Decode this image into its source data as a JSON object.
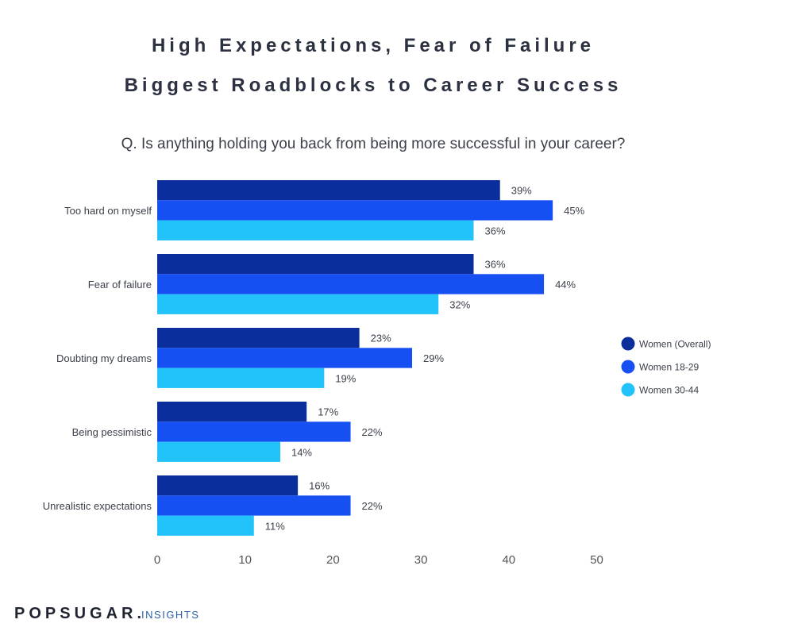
{
  "title_line1": "High Expectations, Fear of Failure",
  "title_line2": "Biggest Roadblocks to Career Success",
  "question": "Q. Is anything holding you back from being more successful in your career?",
  "brand": {
    "main": "POPSUGAR",
    "dot": ".",
    "sub": "INSIGHTS"
  },
  "colors": {
    "text": "#3a3f4a",
    "axis_text": "#555555"
  },
  "chart_data": {
    "type": "bar",
    "orientation": "horizontal",
    "categories": [
      "Too hard on myself",
      "Fear of failure",
      "Doubting my dreams",
      "Being pessimistic",
      "Unrealistic expectations"
    ],
    "series": [
      {
        "name": "Women (Overall)",
        "color": "#0a2f9c",
        "values": [
          39,
          36,
          23,
          17,
          16
        ],
        "labels": [
          "39%",
          "36%",
          "23%",
          "17%",
          "16%"
        ]
      },
      {
        "name": "Women 18-29",
        "color": "#1650f2",
        "values": [
          45,
          44,
          29,
          22,
          22
        ],
        "labels": [
          "45%",
          "44%",
          "29%",
          "22%",
          "22%"
        ]
      },
      {
        "name": "Women 30-44",
        "color": "#22c3fa",
        "values": [
          36,
          32,
          19,
          14,
          11
        ],
        "labels": [
          "36%",
          "32%",
          "19%",
          "14%",
          "11%"
        ]
      }
    ],
    "xlim": [
      0,
      50
    ],
    "xticks": [
      0,
      10,
      20,
      30,
      40,
      50
    ],
    "xtick_labels": [
      "0",
      "10",
      "20",
      "30",
      "40",
      "50"
    ],
    "grid": false,
    "legend_position": "right"
  }
}
